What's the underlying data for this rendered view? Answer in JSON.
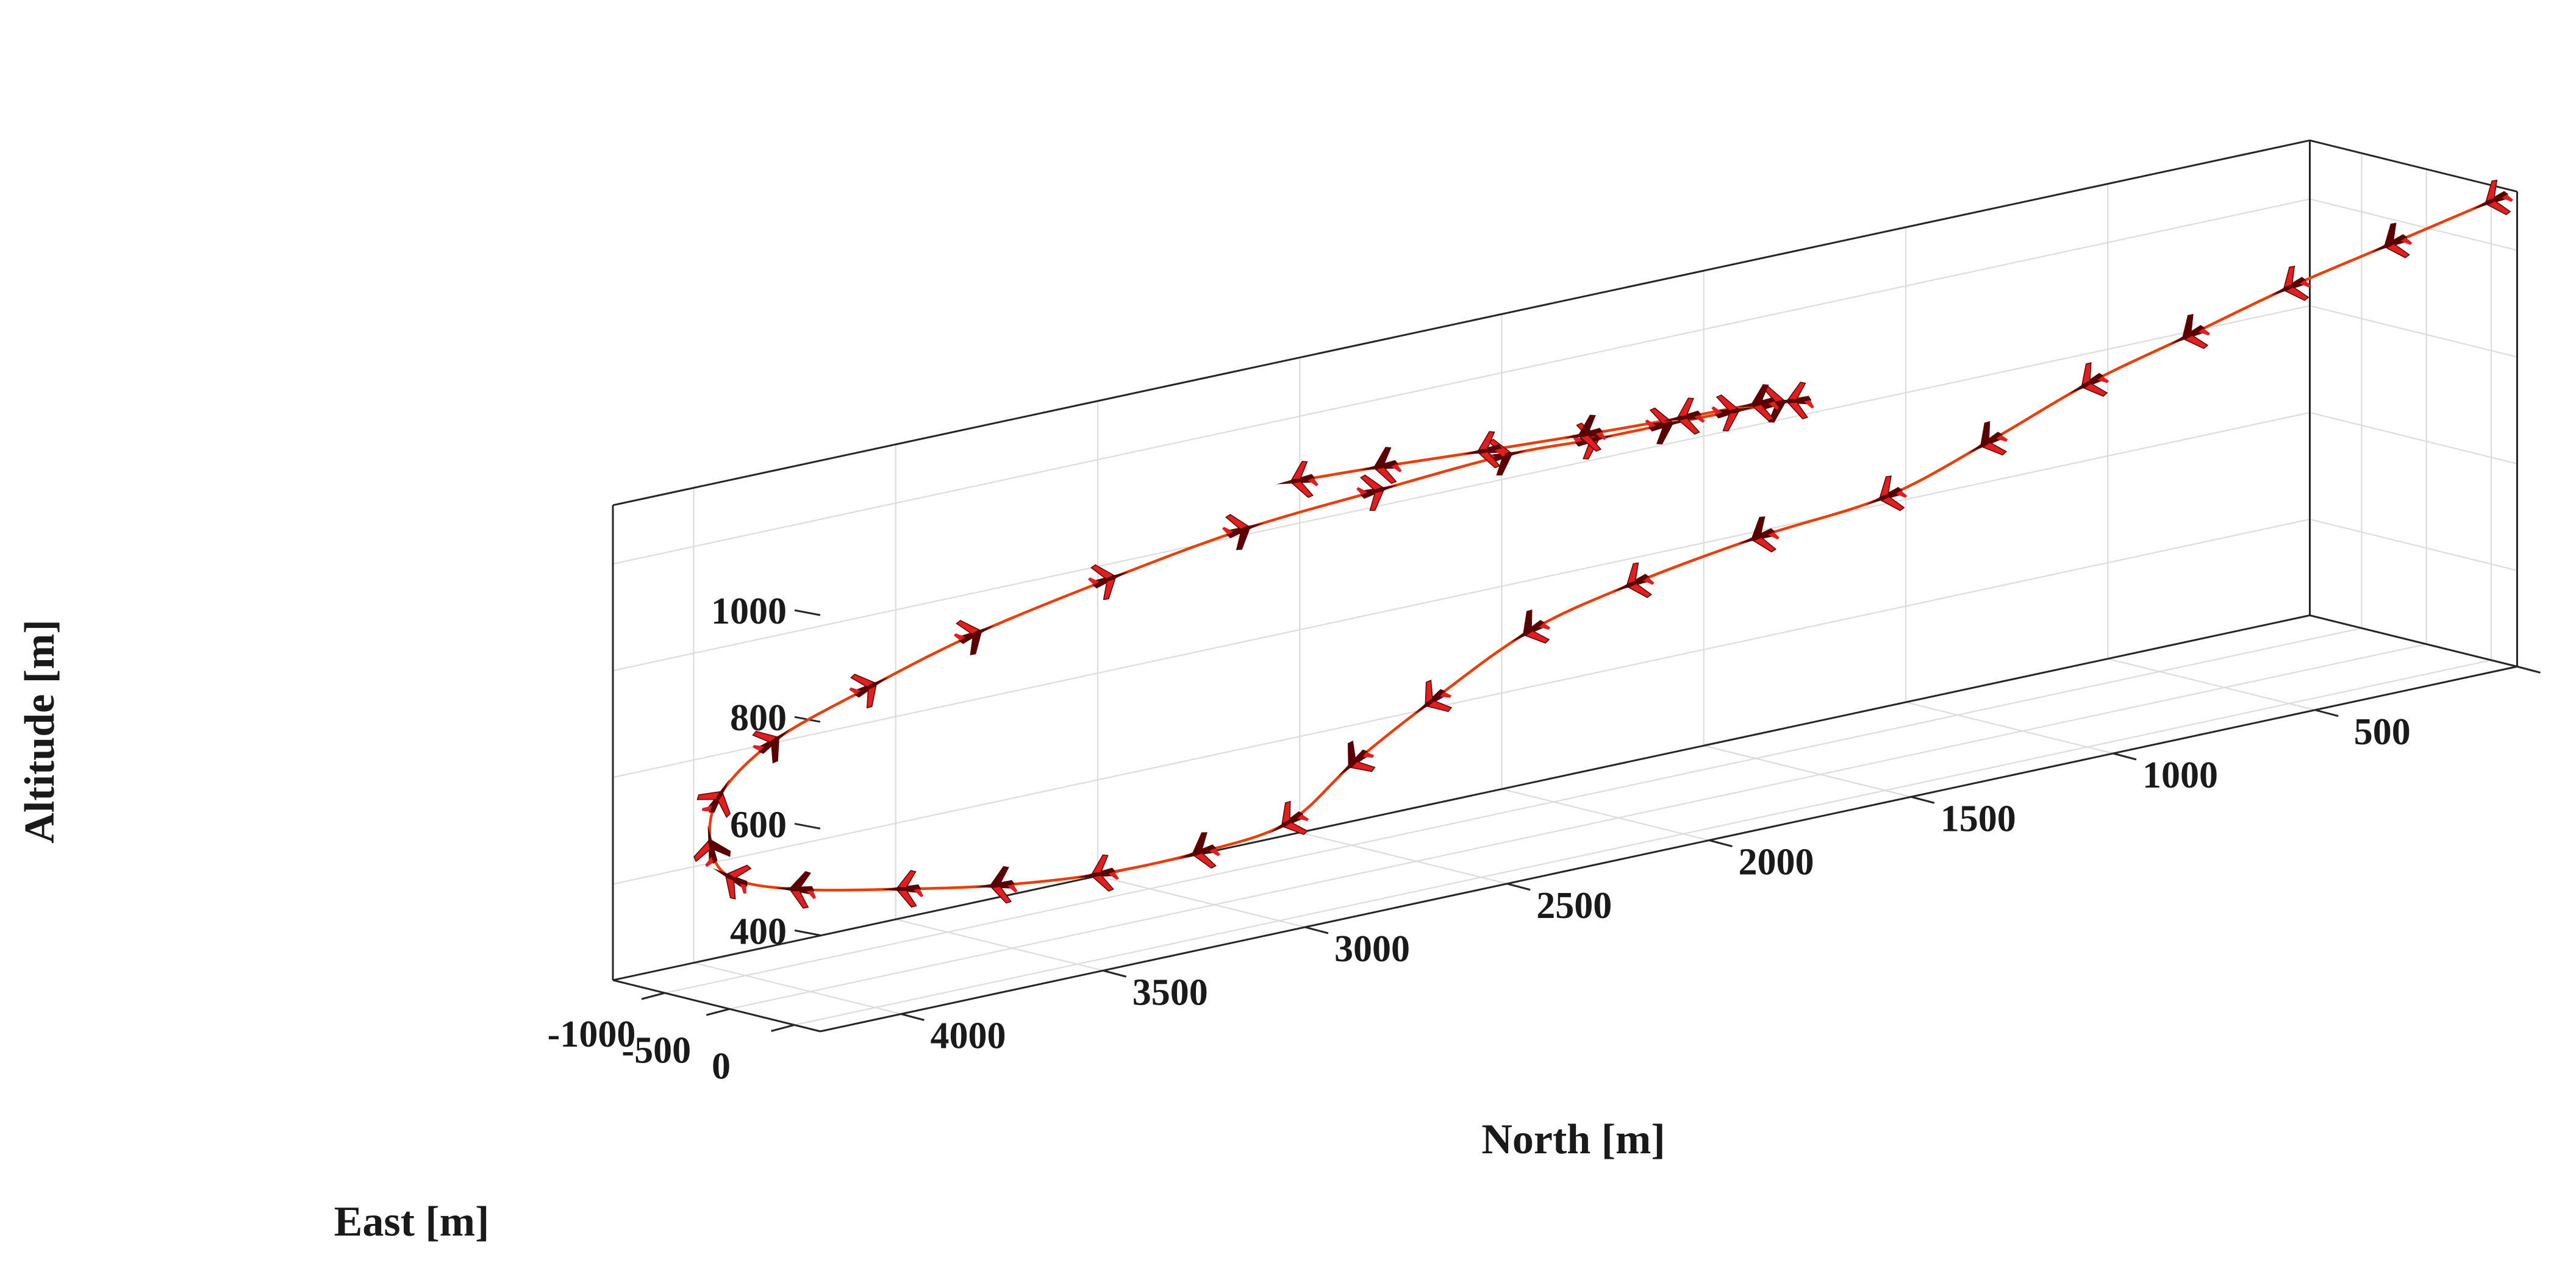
{
  "chart_data": {
    "type": "line3d",
    "xlabel": "North [m]",
    "ylabel": "East [m]",
    "zlabel": "Altitude [m]",
    "north_ticks": [
      0,
      500,
      1000,
      1500,
      2000,
      2500,
      3000,
      3500,
      4000
    ],
    "east_ticks": [
      -1000,
      -500,
      0
    ],
    "altitude_ticks": [
      400,
      600,
      800,
      1000
    ],
    "north_lim": [
      0,
      4200
    ],
    "east_lim": [
      -1400,
      200
    ],
    "altitude_lim": [
      220,
      1110
    ],
    "grid": true,
    "series": [
      {
        "marker": "aircraft",
        "colors": {
          "line": "#e8400c",
          "marker_light": "#e02020",
          "marker_dark": "#5a0000"
        },
        "north": [
          0,
          250,
          500,
          750,
          1000,
          1250,
          1500,
          1800,
          2100,
          2350,
          2600,
          2800,
          2980,
          3200,
          3450,
          3700,
          3900,
          4100,
          4180,
          4150,
          4050,
          3850,
          3600,
          3350,
          3050,
          2750,
          2450,
          2150,
          1950,
          1800,
          1700,
          1650,
          1680,
          1800,
          2000,
          2250,
          2500,
          2750,
          2950
        ],
        "east": [
          0,
          0,
          0,
          0,
          0,
          0,
          0,
          -50,
          -80,
          -100,
          -80,
          -50,
          0,
          0,
          0,
          0,
          -100,
          -300,
          -550,
          -800,
          -1050,
          -1250,
          -1280,
          -1250,
          -1150,
          -1050,
          -950,
          -900,
          -850,
          -750,
          -550,
          -350,
          -150,
          -50,
          0,
          20,
          20,
          0,
          -20
        ],
        "altitude": [
          1080,
          1040,
          1000,
          950,
          900,
          830,
          770,
          740,
          700,
          650,
          560,
          480,
          400,
          380,
          380,
          400,
          420,
          440,
          460,
          500,
          560,
          620,
          680,
          740,
          800,
          850,
          880,
          900,
          900,
          910,
          930,
          950,
          970,
          990,
          1000,
          1010,
          1020,
          1030,
          1035
        ]
      }
    ]
  }
}
